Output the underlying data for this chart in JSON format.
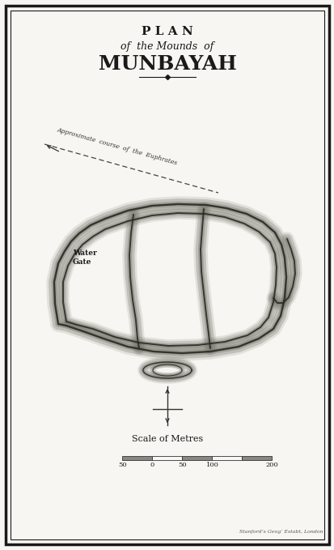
{
  "title_line1": "P L A N",
  "title_line2": "of  the Mounds  of",
  "title_line3": "MUNBAYAH",
  "subtitle": "Stanford’s Geog’ Estabt, London",
  "scale_label": "Scale of Metres",
  "scale_ticks": [
    -50,
    0,
    50,
    100,
    200
  ],
  "water_gate_label": "Water\nGate",
  "euphrates_label": "Approximate  course  of  the  Euphrates",
  "bg_color": "#f8f6f2",
  "border_color": "#1a1a1a",
  "mound_color": "#6a6a60",
  "text_color": "#1a1a1a"
}
